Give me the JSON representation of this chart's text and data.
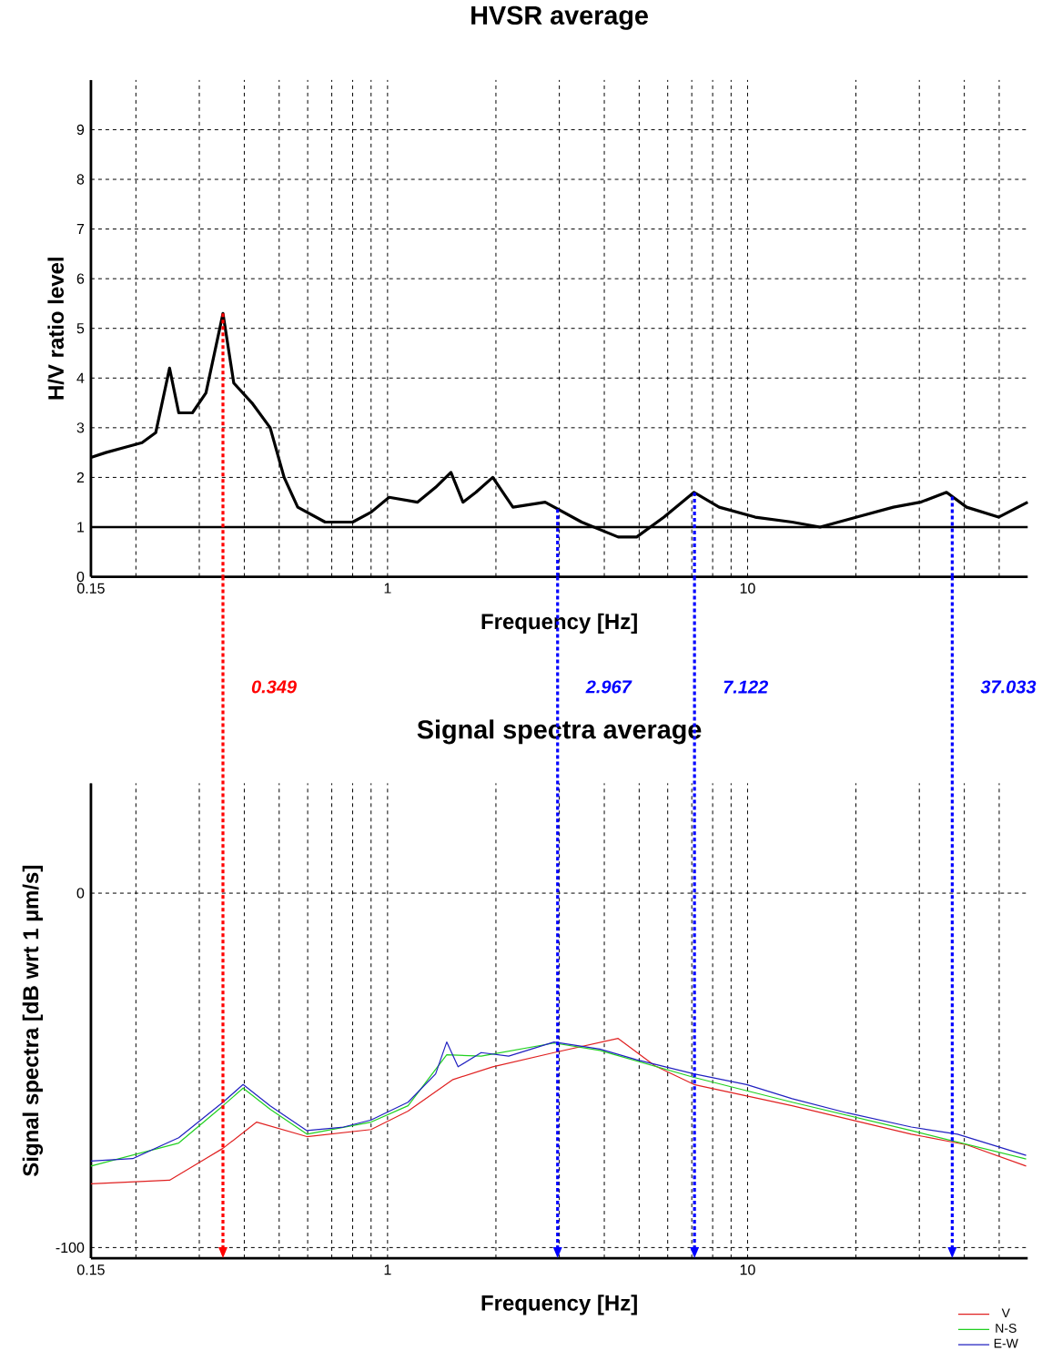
{
  "chart_data": [
    {
      "type": "line",
      "title": "HVSR average",
      "xlabel": "Frequency [Hz]",
      "ylabel": "H/V ratio level",
      "log": "x",
      "grid": true,
      "xlim": [
        0.15,
        60
      ],
      "ylim": [
        0,
        10
      ],
      "xticks": [
        0.15,
        1,
        10
      ],
      "yticks": [
        0,
        1,
        2,
        3,
        4,
        5,
        6,
        7,
        8,
        9
      ],
      "ref_lines": [
        {
          "axis": "y",
          "value": 1,
          "color": "#000000",
          "line_style": "solid"
        },
        {
          "axis": "x",
          "value": 0.349,
          "color": "#ff0000",
          "line_style": "dotted"
        },
        {
          "axis": "x",
          "value": 2.967,
          "color": "#0000ff",
          "line_style": "dotted"
        },
        {
          "axis": "x",
          "value": 7.122,
          "color": "#0000ff",
          "line_style": "dotted"
        },
        {
          "axis": "x",
          "value": 37.033,
          "color": "#0000ff",
          "line_style": "dotted"
        }
      ],
      "series": [
        {
          "color": "#000000",
          "x": [
            0.15,
            0.165,
            0.185,
            0.208,
            0.227,
            0.248,
            0.263,
            0.287,
            0.313,
            0.349,
            0.374,
            0.42,
            0.472,
            0.516,
            0.563,
            0.671,
            0.8,
            0.9,
            1.01,
            1.21,
            1.36,
            1.5,
            1.62,
            1.76,
            1.96,
            2.23,
            2.74,
            3.46,
            4.37,
            4.92,
            5.86,
            7.1,
            8.34,
            10.5,
            13.3,
            15.9,
            20.1,
            25.4,
            30.2,
            35.7,
            40.6,
            49.8,
            60
          ],
          "values": [
            2.4,
            2.5,
            2.6,
            2.7,
            2.9,
            4.2,
            3.3,
            3.3,
            3.7,
            5.3,
            3.9,
            3.5,
            3.0,
            2.0,
            1.4,
            1.1,
            1.1,
            1.3,
            1.6,
            1.5,
            1.8,
            2.1,
            1.5,
            1.7,
            2.0,
            1.4,
            1.5,
            1.1,
            0.8,
            0.8,
            1.2,
            1.7,
            1.4,
            1.2,
            1.1,
            1.0,
            1.2,
            1.4,
            1.5,
            1.7,
            1.4,
            1.2,
            1.5
          ]
        }
      ]
    },
    {
      "type": "line",
      "title": "Signal spectra average",
      "xlabel": "Frequency [Hz]",
      "ylabel": "Signal spectra [dB wrt 1 µm/s]",
      "log": "x",
      "grid": true,
      "legend": "bottom right",
      "xlim": [
        0.15,
        60
      ],
      "ylim": [
        -103,
        31
      ],
      "xticks": [
        0.15,
        1,
        10
      ],
      "yticks": [
        -100,
        0
      ],
      "ref_lines": [
        {
          "axis": "x",
          "value": 0.349,
          "label": "0.349",
          "color": "#ff0000",
          "line_style": "dotted"
        },
        {
          "axis": "x",
          "value": 2.967,
          "label": "2.967",
          "color": "#0000ff",
          "line_style": "dotted"
        },
        {
          "axis": "x",
          "value": 7.122,
          "label": "7.122",
          "color": "#0000ff",
          "line_style": "dotted"
        },
        {
          "axis": "x",
          "value": 37.033,
          "label": "37.033",
          "color": "#0000ff",
          "line_style": "dotted"
        }
      ],
      "series": [
        {
          "name": "V",
          "color": "#e02020",
          "x": [
            0.15,
            0.248,
            0.349,
            0.433,
            0.597,
            0.9,
            1.14,
            1.52,
            1.96,
            2.9,
            4.37,
            5.53,
            7.1,
            13.3,
            28.5,
            40.6,
            59.4
          ],
          "values": [
            -82,
            -81,
            -72,
            -64.6,
            -68.7,
            -66.7,
            -61.5,
            -52.6,
            -49,
            -45,
            -41,
            -48.7,
            -54,
            -60,
            -68,
            -71,
            -77
          ]
        },
        {
          "name": "N-S",
          "color": "#20d020",
          "x": [
            0.15,
            0.263,
            0.349,
            0.397,
            0.472,
            0.597,
            0.9,
            1.14,
            1.46,
            1.82,
            2.9,
            3.89,
            7.1,
            13.3,
            28.5,
            59.4
          ],
          "values": [
            -77,
            -70.5,
            -60,
            -55,
            -61,
            -68,
            -64.6,
            -60,
            -45.6,
            -46,
            -42.3,
            -44.4,
            -52,
            -59,
            -67,
            -75
          ]
        },
        {
          "name": "E-W",
          "color": "#2020c0",
          "x": [
            0.15,
            0.196,
            0.263,
            0.349,
            0.397,
            0.472,
            0.597,
            0.755,
            0.9,
            1.14,
            1.36,
            1.46,
            1.57,
            1.82,
            2.17,
            2.9,
            3.89,
            4.92,
            7.1,
            9.94,
            13.3,
            18.9,
            28.5,
            38.3,
            59.4
          ],
          "values": [
            -75.6,
            -74.9,
            -69,
            -59,
            -54,
            -60,
            -67,
            -66,
            -64,
            -59,
            -51,
            -42,
            -49,
            -45,
            -46,
            -42,
            -44,
            -47,
            -51,
            -54,
            -58,
            -62,
            -66,
            -68,
            -74
          ]
        }
      ]
    }
  ]
}
